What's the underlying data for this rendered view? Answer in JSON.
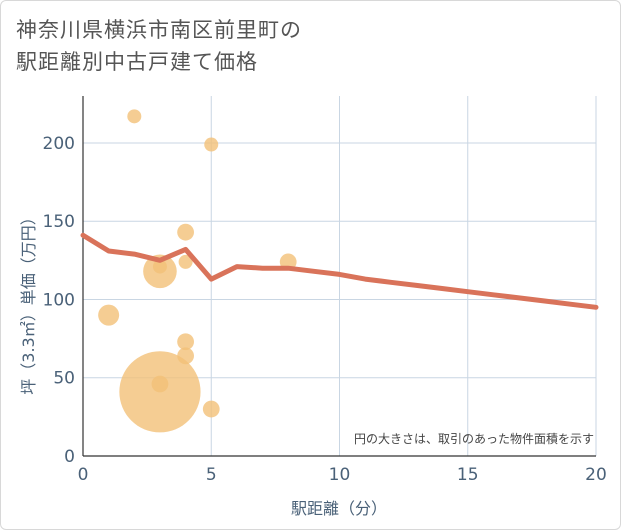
{
  "chart_data": {
    "type": "scatter",
    "title_lines": [
      "神奈川県横浜市南区前里町の",
      "駅距離別中古戸建て価格"
    ],
    "xlabel": "駅距離（分）",
    "ylabel": "坪（3.3㎡）単価（万円）",
    "xlim": [
      0,
      20
    ],
    "ylim": [
      0,
      230
    ],
    "x_ticks": [
      0,
      5,
      10,
      15,
      20
    ],
    "y_ticks": [
      0,
      50,
      100,
      150,
      200
    ],
    "note": "円の大きさは、取引のあった物件面積を示す",
    "colors": {
      "line": "#d9735a",
      "points": "#f2c078",
      "grid": "#c9d6e3",
      "axis_text": "#4a6178"
    },
    "points": [
      {
        "x": 2,
        "y": 217,
        "size": 1
      },
      {
        "x": 5,
        "y": 199,
        "size": 1
      },
      {
        "x": 4,
        "y": 143,
        "size": 1.2
      },
      {
        "x": 3,
        "y": 121,
        "size": 1
      },
      {
        "x": 4,
        "y": 124,
        "size": 1
      },
      {
        "x": 3,
        "y": 118,
        "size": 2.4
      },
      {
        "x": 8,
        "y": 124,
        "size": 1.2
      },
      {
        "x": 1,
        "y": 90,
        "size": 1.5
      },
      {
        "x": 4,
        "y": 73,
        "size": 1.2
      },
      {
        "x": 4,
        "y": 64,
        "size": 1.2
      },
      {
        "x": 3,
        "y": 46,
        "size": 1.2
      },
      {
        "x": 3,
        "y": 41,
        "size": 5.8
      },
      {
        "x": 5,
        "y": 30,
        "size": 1.2
      }
    ],
    "line": {
      "x": [
        0,
        1,
        2,
        3,
        4,
        5,
        6,
        7,
        8,
        9,
        10,
        11,
        12,
        13,
        14,
        15,
        16,
        17,
        18,
        19,
        20
      ],
      "y": [
        141,
        131,
        129,
        125,
        132,
        113,
        121,
        120,
        120,
        118,
        116,
        113,
        111,
        109,
        107,
        105,
        103,
        101,
        99,
        97,
        95
      ]
    }
  }
}
